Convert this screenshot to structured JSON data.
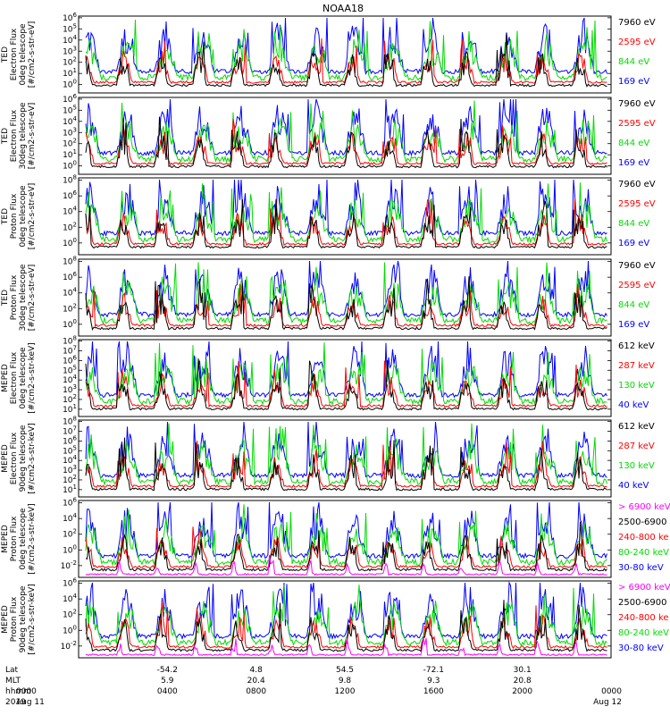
{
  "title": "NOAA18",
  "colors": {
    "blue": "#0000ff",
    "red": "#ff0000",
    "green": "#00dd00",
    "black": "#000000",
    "magenta": "#ff00ff"
  },
  "chart_data": [
    {
      "type": "line",
      "ylabel": [
        "TED",
        "Electron Flux",
        "0deg telescope",
        "[#/cm2-s-str-eV]"
      ],
      "yticks": [
        "10^6",
        "10^5",
        "10^4",
        "10^3",
        "10^2",
        "10^1",
        "10^0"
      ],
      "series": [
        {
          "name": "7960 eV",
          "color": "black"
        },
        {
          "name": "2595 eV",
          "color": "red"
        },
        {
          "name": "844 eV",
          "color": "green"
        },
        {
          "name": "169 eV",
          "color": "blue"
        }
      ]
    },
    {
      "type": "line",
      "ylabel": [
        "TED",
        "Electron Flux",
        "30deg telescope",
        "[#/cm2-s-str-eV]"
      ],
      "yticks": [
        "10^6",
        "10^5",
        "10^4",
        "10^3",
        "10^2",
        "10^1",
        "10^0"
      ],
      "series": [
        {
          "name": "7960 eV",
          "color": "black"
        },
        {
          "name": "2595 eV",
          "color": "red"
        },
        {
          "name": "844 eV",
          "color": "green"
        },
        {
          "name": "169 eV",
          "color": "blue"
        }
      ]
    },
    {
      "type": "line",
      "ylabel": [
        "TED",
        "Proton Flux",
        "0deg telescope",
        "[#/cm2-s-str-eV]"
      ],
      "yticks": [
        "10^8",
        "10^6",
        "10^4",
        "10^2",
        "10^0"
      ],
      "series": [
        {
          "name": "7960 eV",
          "color": "black"
        },
        {
          "name": "2595 eV",
          "color": "red"
        },
        {
          "name": "844 eV",
          "color": "green"
        },
        {
          "name": "169 eV",
          "color": "blue"
        }
      ]
    },
    {
      "type": "line",
      "ylabel": [
        "TED",
        "Proton Flux",
        "30deg telescope",
        "[#/cm2-s-str-eV]"
      ],
      "yticks": [
        "10^8",
        "10^6",
        "10^4",
        "10^2",
        "10^0"
      ],
      "series": [
        {
          "name": "7960 eV",
          "color": "black"
        },
        {
          "name": "2595 eV",
          "color": "red"
        },
        {
          "name": "844 eV",
          "color": "green"
        },
        {
          "name": "169 eV",
          "color": "blue"
        }
      ]
    },
    {
      "type": "line",
      "ylabel": [
        "MEPED",
        "Electron Flux",
        "0deg telescope",
        "[#/cm2-s-str-keV]"
      ],
      "yticks": [
        "10^8",
        "10^7",
        "10^6",
        "10^5",
        "10^4",
        "10^3",
        "10^2",
        "10^1"
      ],
      "series": [
        {
          "name": "612 keV",
          "color": "black"
        },
        {
          "name": "287 keV",
          "color": "red"
        },
        {
          "name": "130 keV",
          "color": "green"
        },
        {
          "name": "40 keV",
          "color": "blue"
        }
      ]
    },
    {
      "type": "line",
      "ylabel": [
        "MEPED",
        "Electron Flux",
        "90deg telescope",
        "[#/cm2-s-str-keV]"
      ],
      "yticks": [
        "10^8",
        "10^7",
        "10^6",
        "10^5",
        "10^4",
        "10^3",
        "10^2",
        "10^1"
      ],
      "series": [
        {
          "name": "612 keV",
          "color": "black"
        },
        {
          "name": "287 keV",
          "color": "red"
        },
        {
          "name": "130 keV",
          "color": "green"
        },
        {
          "name": "40 keV",
          "color": "blue"
        }
      ]
    },
    {
      "type": "line",
      "ylabel": [
        "MEPED",
        "Proton Flux",
        "0deg telescope",
        "[#/cm2-s-str-keV]"
      ],
      "yticks": [
        "10^6",
        "10^4",
        "10^2",
        "10^0",
        "10^-2"
      ],
      "series": [
        {
          "name": "> 6900 keV",
          "color": "magenta"
        },
        {
          "name": "2500-6900",
          "color": "black"
        },
        {
          "name": "240-800 ke",
          "color": "red"
        },
        {
          "name": "80-240 keV",
          "color": "green"
        },
        {
          "name": "30-80 keV",
          "color": "blue"
        }
      ]
    },
    {
      "type": "line",
      "ylabel": [
        "MEPED",
        "Proton Flux",
        "90deg telescope",
        "[#/cm2-s-str-keV]"
      ],
      "yticks": [
        "10^6",
        "10^4",
        "10^2",
        "10^0",
        "10^-2"
      ],
      "series": [
        {
          "name": "> 6900 keV",
          "color": "magenta"
        },
        {
          "name": "2500-6900",
          "color": "black"
        },
        {
          "name": "240-800 ke",
          "color": "red"
        },
        {
          "name": "80-240 keV",
          "color": "green"
        },
        {
          "name": "30-80 keV",
          "color": "blue"
        }
      ]
    }
  ],
  "xaxis": {
    "row_labels": [
      "Lat",
      "MLT",
      "hhmm",
      "2019"
    ],
    "columns": [
      {
        "lat": "",
        "mlt": "",
        "hhmm": "0000",
        "date": "Aug 11"
      },
      {
        "lat": "-54.2",
        "mlt": "5.9",
        "hhmm": "0400",
        "date": ""
      },
      {
        "lat": "4.8",
        "mlt": "20.4",
        "hhmm": "0800",
        "date": ""
      },
      {
        "lat": "54.5",
        "mlt": "9.8",
        "hhmm": "1200",
        "date": ""
      },
      {
        "lat": "-72.1",
        "mlt": "9.3",
        "hhmm": "1600",
        "date": ""
      },
      {
        "lat": "30.1",
        "mlt": "20.8",
        "hhmm": "2000",
        "date": ""
      },
      {
        "lat": "",
        "mlt": "",
        "hhmm": "0000",
        "date": "Aug 12"
      }
    ]
  }
}
